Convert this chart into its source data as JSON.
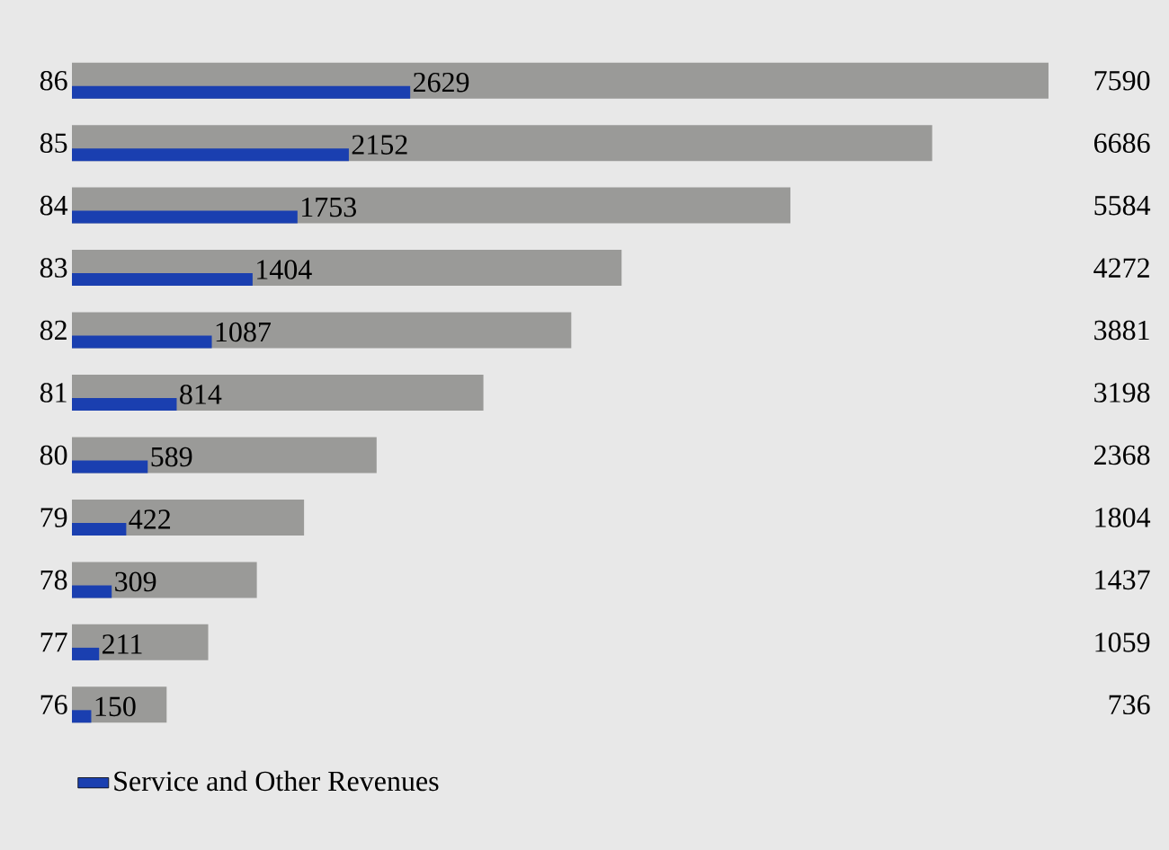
{
  "chart_data": {
    "type": "bar",
    "orientation": "horizontal",
    "categories": [
      "86",
      "85",
      "84",
      "83",
      "82",
      "81",
      "80",
      "79",
      "78",
      "77",
      "76"
    ],
    "series": [
      {
        "color": "#9a9a98",
        "values": [
          7590,
          6686,
          5584,
          4272,
          3881,
          3198,
          2368,
          1804,
          1437,
          1059,
          736
        ]
      },
      {
        "name": "Service and Other Revenues",
        "color": "#1a3fb0",
        "values": [
          2629,
          2152,
          1753,
          1404,
          1087,
          814,
          589,
          422,
          309,
          211,
          150
        ]
      }
    ],
    "data_labels": true,
    "legend": "bottom left",
    "tick_labels": "y"
  }
}
